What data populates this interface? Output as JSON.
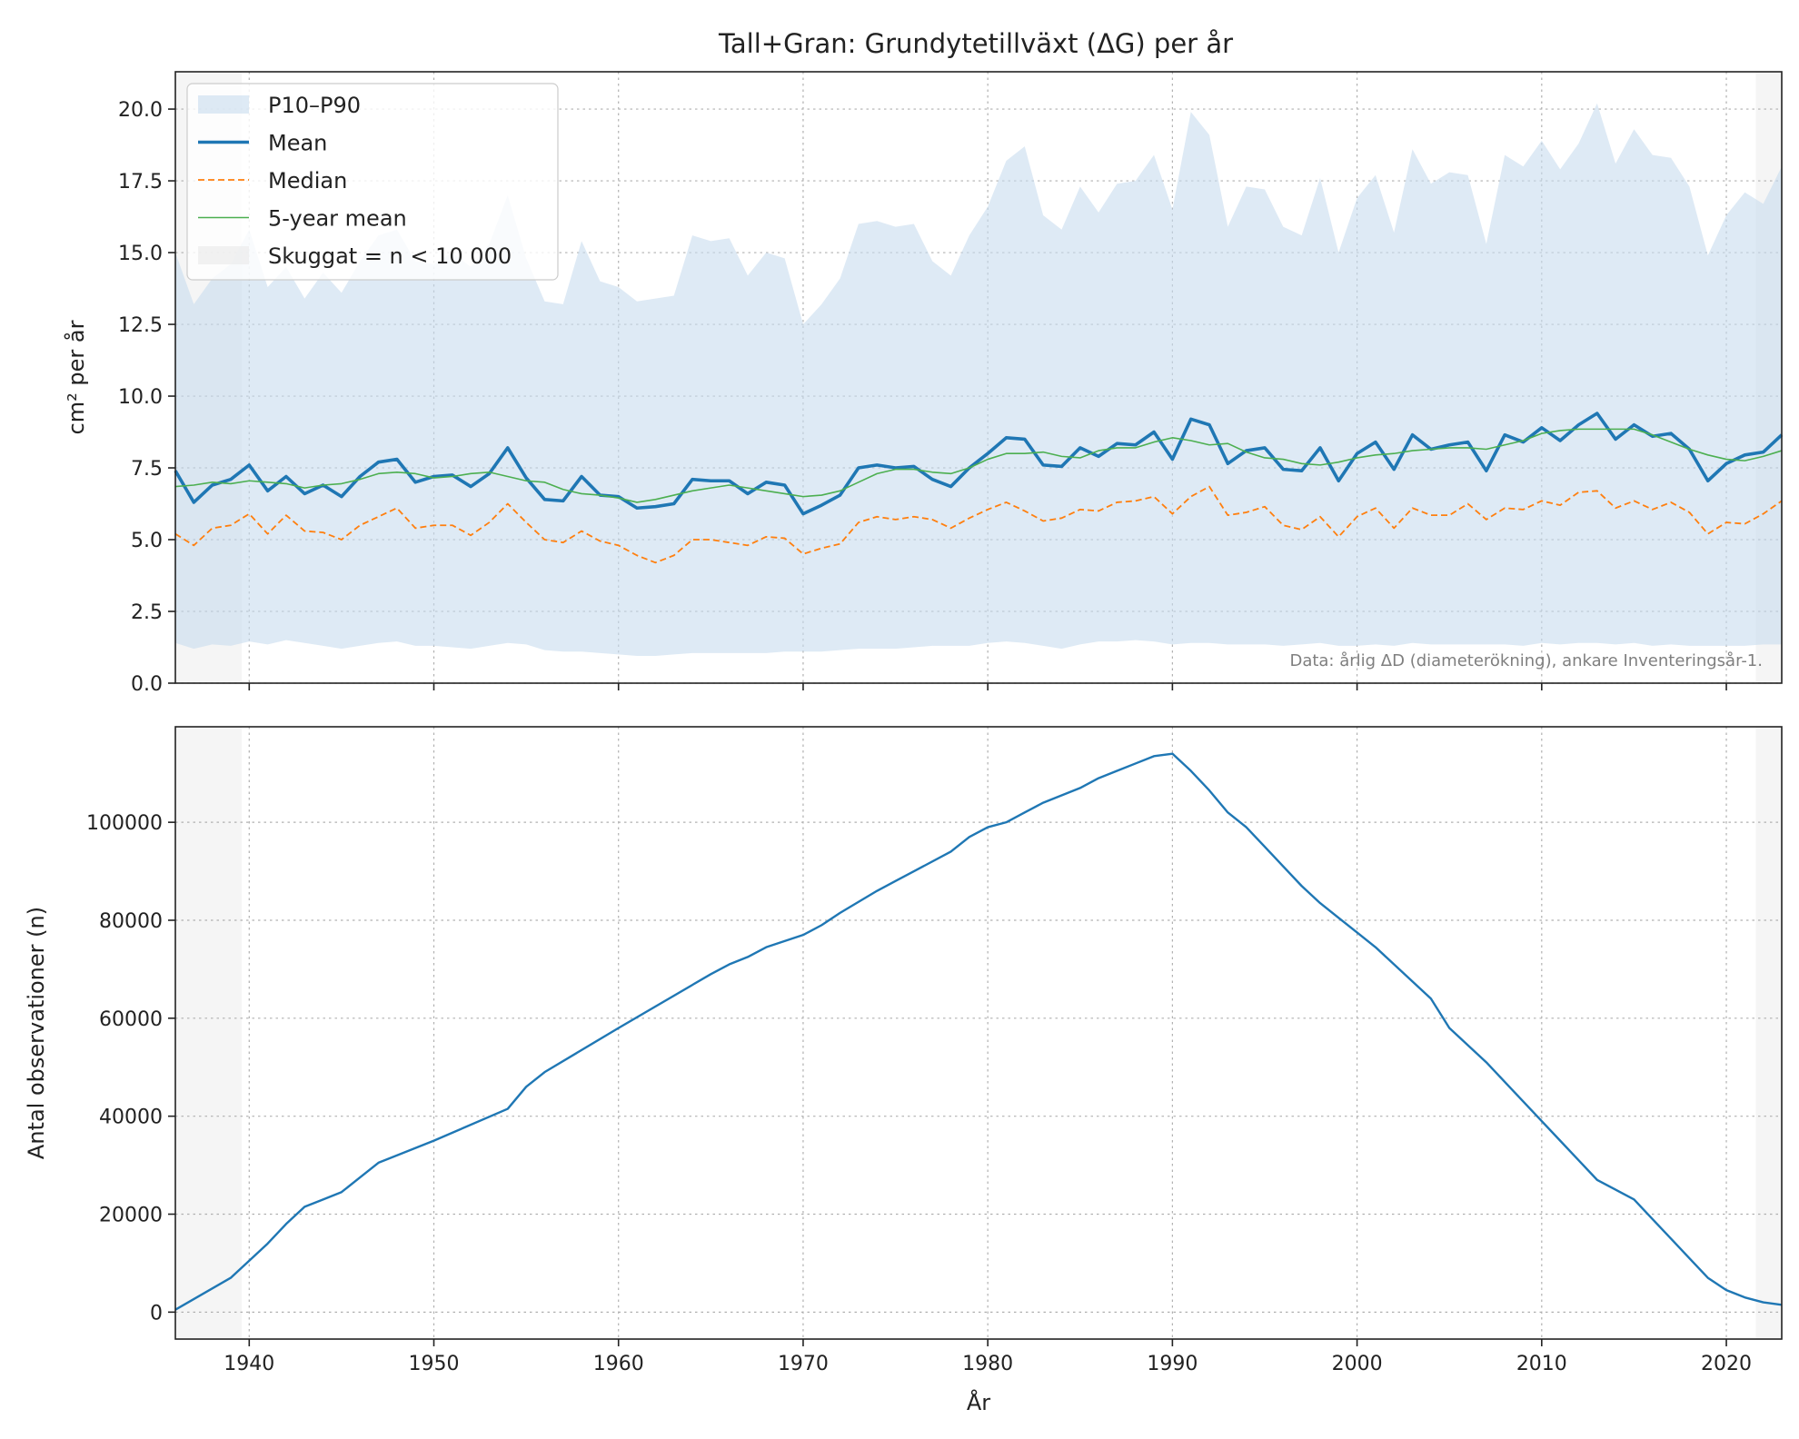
{
  "figure": {
    "title": "Tall+Gran: Grundytetillväxt (ΔG) per år",
    "note": "Data: årlig ΔD (diameterökning), ankare Inventeringsår-1."
  },
  "colors": {
    "mean": "#1f77b4",
    "median": "#ff7f0e",
    "rolling": "#4caf50",
    "band": "#c8dcee",
    "shade": "#e9e9e9"
  },
  "legend": [
    {
      "key": "band",
      "label": "P10–P90"
    },
    {
      "key": "mean",
      "label": "Mean"
    },
    {
      "key": "median",
      "label": "Median"
    },
    {
      "key": "rolling",
      "label": "5-year mean"
    },
    {
      "key": "shade",
      "label": "Skuggat = n < 10 000"
    }
  ],
  "chart_data": [
    {
      "type": "line",
      "title": "Tall+Gran: Grundytetillväxt (ΔG) per år",
      "xlabel": "",
      "ylabel": "cm² per år",
      "xlim": [
        1936,
        2023
      ],
      "ylim": [
        0,
        21.3
      ],
      "yticks": [
        "0.0",
        "2.5",
        "5.0",
        "7.5",
        "10.0",
        "12.5",
        "15.0",
        "17.5",
        "20.0"
      ],
      "xticks": [
        "1940",
        "1950",
        "1960",
        "1970",
        "1980",
        "1990",
        "2000",
        "2010",
        "2020"
      ],
      "grid": true,
      "legend_position": "top-left",
      "shaded_x_ranges": [
        [
          1936,
          1939.6
        ],
        [
          2021.6,
          2023
        ]
      ],
      "x_start": 1936,
      "series": [
        {
          "name": "Mean",
          "values": [
            7.4,
            6.3,
            6.9,
            7.1,
            7.6,
            6.7,
            7.2,
            6.6,
            6.9,
            6.5,
            7.2,
            7.7,
            7.8,
            7.0,
            7.2,
            7.25,
            6.85,
            7.3,
            8.2,
            7.15,
            6.4,
            6.35,
            7.2,
            6.55,
            6.5,
            6.1,
            6.15,
            6.25,
            7.1,
            7.05,
            7.05,
            6.6,
            7.0,
            6.9,
            5.9,
            6.2,
            6.55,
            7.5,
            7.6,
            7.5,
            7.55,
            7.1,
            6.85,
            7.5,
            8.0,
            8.55,
            8.5,
            7.6,
            7.55,
            8.2,
            7.9,
            8.35,
            8.3,
            8.75,
            7.8,
            9.2,
            9.0,
            7.65,
            8.1,
            8.2,
            7.45,
            7.4,
            8.2,
            7.05,
            8.0,
            8.4,
            7.45,
            8.65,
            8.15,
            8.3,
            8.4,
            7.4,
            8.65,
            8.4,
            8.9,
            8.45,
            9.0,
            9.4,
            8.5,
            9.0,
            8.6,
            8.7,
            8.15,
            7.05,
            7.65,
            7.95,
            8.05,
            8.65
          ]
        },
        {
          "name": "Median",
          "values": [
            5.2,
            4.8,
            5.4,
            5.5,
            5.9,
            5.2,
            5.85,
            5.3,
            5.25,
            5.0,
            5.5,
            5.8,
            6.1,
            5.4,
            5.5,
            5.5,
            5.15,
            5.6,
            6.25,
            5.6,
            5.0,
            4.9,
            5.3,
            4.95,
            4.8,
            4.45,
            4.2,
            4.45,
            5.0,
            5.0,
            4.9,
            4.8,
            5.1,
            5.05,
            4.5,
            4.7,
            4.85,
            5.6,
            5.8,
            5.7,
            5.8,
            5.7,
            5.4,
            5.75,
            6.05,
            6.3,
            6.0,
            5.65,
            5.75,
            6.05,
            6.0,
            6.3,
            6.35,
            6.5,
            5.9,
            6.5,
            6.85,
            5.85,
            5.95,
            6.15,
            5.5,
            5.35,
            5.8,
            5.1,
            5.8,
            6.1,
            5.4,
            6.1,
            5.85,
            5.85,
            6.25,
            5.7,
            6.1,
            6.05,
            6.35,
            6.2,
            6.65,
            6.7,
            6.1,
            6.35,
            6.05,
            6.3,
            5.95,
            5.2,
            5.6,
            5.55,
            5.9,
            6.35
          ]
        },
        {
          "name": "5-year mean",
          "values": [
            6.85,
            6.9,
            7.0,
            6.95,
            7.05,
            7.0,
            6.95,
            6.8,
            6.9,
            6.95,
            7.1,
            7.3,
            7.35,
            7.3,
            7.15,
            7.2,
            7.3,
            7.35,
            7.2,
            7.05,
            7.0,
            6.75,
            6.6,
            6.55,
            6.45,
            6.3,
            6.4,
            6.55,
            6.7,
            6.8,
            6.9,
            6.8,
            6.7,
            6.6,
            6.5,
            6.55,
            6.7,
            7.0,
            7.3,
            7.45,
            7.45,
            7.35,
            7.3,
            7.5,
            7.8,
            8.0,
            8.0,
            8.05,
            7.9,
            7.85,
            8.1,
            8.2,
            8.2,
            8.4,
            8.55,
            8.45,
            8.3,
            8.35,
            8.05,
            7.85,
            7.8,
            7.65,
            7.6,
            7.7,
            7.85,
            7.95,
            8.0,
            8.1,
            8.15,
            8.2,
            8.2,
            8.15,
            8.3,
            8.45,
            8.7,
            8.8,
            8.85,
            8.85,
            8.85,
            8.85,
            8.65,
            8.4,
            8.15,
            7.95,
            7.8,
            7.75,
            7.9,
            8.1
          ]
        },
        {
          "name": "P10–P90",
          "type": "band",
          "upper": [
            15.0,
            13.2,
            14.1,
            14.6,
            15.8,
            13.8,
            14.5,
            13.4,
            14.3,
            13.6,
            14.7,
            15.6,
            15.8,
            14.7,
            14.6,
            15.0,
            14.5,
            15.3,
            17.0,
            14.8,
            13.3,
            13.2,
            15.4,
            14.0,
            13.8,
            13.3,
            13.4,
            13.5,
            15.6,
            15.4,
            15.5,
            14.2,
            15.0,
            14.8,
            12.5,
            13.2,
            14.1,
            16.0,
            16.1,
            15.9,
            16.0,
            14.7,
            14.2,
            15.6,
            16.6,
            18.2,
            18.7,
            16.3,
            15.8,
            17.3,
            16.4,
            17.4,
            17.5,
            18.4,
            16.5,
            19.9,
            19.1,
            15.9,
            17.3,
            17.2,
            15.9,
            15.6,
            17.6,
            15.0,
            16.9,
            17.7,
            15.7,
            18.6,
            17.4,
            17.8,
            17.7,
            15.3,
            18.4,
            18.0,
            18.9,
            17.9,
            18.8,
            20.2,
            18.1,
            19.3,
            18.4,
            18.3,
            17.3,
            14.9,
            16.3,
            17.1,
            16.7,
            18.0
          ],
          "lower": [
            1.4,
            1.2,
            1.35,
            1.3,
            1.45,
            1.35,
            1.5,
            1.4,
            1.3,
            1.2,
            1.3,
            1.4,
            1.45,
            1.3,
            1.3,
            1.25,
            1.2,
            1.3,
            1.4,
            1.35,
            1.15,
            1.1,
            1.1,
            1.05,
            1.0,
            0.95,
            0.95,
            1.0,
            1.05,
            1.05,
            1.05,
            1.05,
            1.05,
            1.1,
            1.1,
            1.1,
            1.15,
            1.2,
            1.2,
            1.2,
            1.25,
            1.3,
            1.3,
            1.3,
            1.4,
            1.45,
            1.4,
            1.3,
            1.2,
            1.35,
            1.45,
            1.45,
            1.5,
            1.45,
            1.35,
            1.4,
            1.4,
            1.35,
            1.35,
            1.35,
            1.3,
            1.35,
            1.4,
            1.3,
            1.3,
            1.35,
            1.3,
            1.4,
            1.35,
            1.35,
            1.35,
            1.35,
            1.35,
            1.3,
            1.4,
            1.35,
            1.4,
            1.4,
            1.35,
            1.4,
            1.3,
            1.35,
            1.3,
            1.3,
            1.3,
            1.3,
            1.35,
            1.35
          ]
        }
      ]
    },
    {
      "type": "line",
      "title": "",
      "xlabel": "År",
      "ylabel": "Antal observationer (n)",
      "xlim": [
        1936,
        2023
      ],
      "ylim": [
        -5500,
        119500
      ],
      "yticks": [
        "0",
        "20000",
        "40000",
        "60000",
        "80000",
        "100000"
      ],
      "xticks": [
        "1940",
        "1950",
        "1960",
        "1970",
        "1980",
        "1990",
        "2000",
        "2010",
        "2020"
      ],
      "grid": true,
      "shaded_x_ranges": [
        [
          1936,
          1939.6
        ],
        [
          2021.6,
          2023
        ]
      ],
      "series": [
        {
          "name": "",
          "x": [
            1936,
            1939,
            1940,
            1941,
            1942,
            1943,
            1944,
            1945,
            1946,
            1947,
            1950,
            1954,
            1955,
            1956,
            1960,
            1965,
            1966,
            1967,
            1968,
            1970,
            1971,
            1972,
            1974,
            1975,
            1976,
            1978,
            1979,
            1980,
            1981,
            1982,
            1983,
            1985,
            1986,
            1987,
            1988,
            1989,
            1990,
            1991,
            1992,
            1993,
            1994,
            1995,
            1996,
            1997,
            1998,
            1999,
            2000,
            2001,
            2002,
            2003,
            2004,
            2005,
            2006,
            2007,
            2008,
            2010,
            2011,
            2012,
            2013,
            2015,
            2016,
            2017,
            2018,
            2019,
            2020,
            2021,
            2022,
            2023
          ],
          "values": [
            500,
            7000,
            10500,
            14000,
            18000,
            21500,
            23000,
            24500,
            27500,
            30500,
            35000,
            41500,
            46000,
            49000,
            58000,
            69000,
            71000,
            72500,
            74500,
            77000,
            79000,
            81500,
            86000,
            88000,
            90000,
            94000,
            97000,
            99000,
            100000,
            102000,
            104000,
            107000,
            109000,
            110500,
            112000,
            113500,
            114000,
            110500,
            106500,
            102000,
            99000,
            95000,
            91000,
            87000,
            83500,
            80500,
            77500,
            74500,
            71000,
            67500,
            64000,
            58000,
            54500,
            51000,
            47000,
            39000,
            35000,
            31000,
            27000,
            23000,
            19000,
            15000,
            11000,
            7000,
            4500,
            3000,
            2000,
            1500
          ]
        }
      ]
    }
  ]
}
